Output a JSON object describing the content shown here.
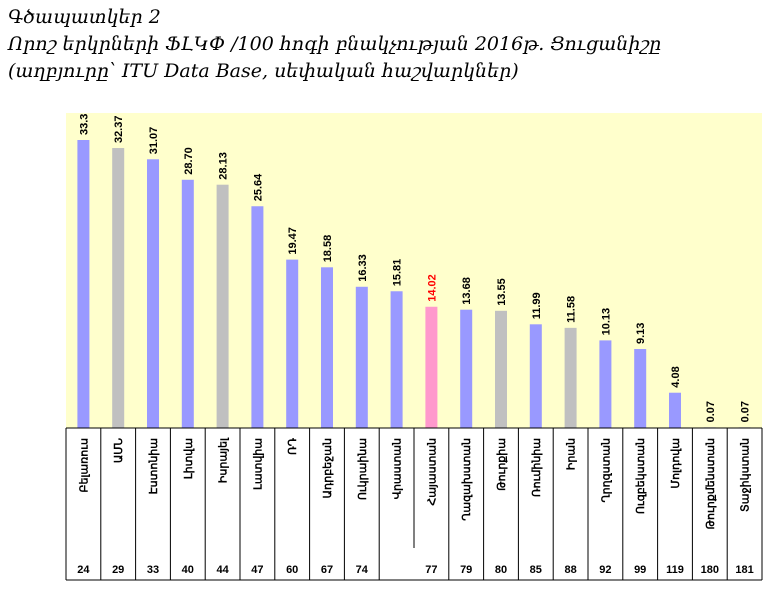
{
  "titles": {
    "label": "Գծապատկեր 2",
    "line1": "Որոշ երկրների ՖԼԿՓ /100 հոգի բնակչության 2016թ. Ցուցանիշը",
    "line2": "(աղբյուրը՝ ITU Data Base, սեփական հաշվարկներ)"
  },
  "chart_data": {
    "type": "bar",
    "title": "",
    "xlabel": "",
    "ylabel": "",
    "ylim": [
      0,
      33.3
    ],
    "grid": false,
    "legend": "none",
    "categories": [
      "Բելառուս",
      "ԱՄՆ",
      "Էստոնիա",
      "Լիտվա",
      "Իսրայել",
      "Լատվիա",
      "ՌԴ",
      "Ադրբեջան",
      "Ուկրաինա",
      "Վրաստան",
      "Հայաստան",
      "Ղազախստան",
      "Թուրքիա",
      "Ռումինիա",
      "Իրան",
      "Ղրղզստան",
      "Ուզբեկստան",
      "Մոլդովա",
      "Թուրքմենստան",
      "Տաջիկստան"
    ],
    "values": [
      33.3,
      32.37,
      31.07,
      28.7,
      28.13,
      25.64,
      19.47,
      18.58,
      16.33,
      15.81,
      14.02,
      13.68,
      13.55,
      11.99,
      11.58,
      10.13,
      9.13,
      4.08,
      0.07,
      0.07
    ],
    "value_labels": [
      "33.3",
      "32.37",
      "31.07",
      "28.70",
      "28.13",
      "25.64",
      "19.47",
      "18.58",
      "16.33",
      "15.81",
      "14.02",
      "13.68",
      "13.55",
      "11.99",
      "11.58",
      "10.13",
      "9.13",
      "4.08",
      "0.07",
      "0.07"
    ],
    "ranks": [
      "24",
      "29",
      "33",
      "40",
      "44",
      "47",
      "60",
      "67",
      "74",
      "",
      "77",
      "79",
      "80",
      "85",
      "88",
      "92",
      "99",
      "119",
      "180",
      "181"
    ],
    "bar_colors": [
      "#9999ff",
      "#c0c0c0",
      "#9999ff",
      "#9999ff",
      "#c0c0c0",
      "#9999ff",
      "#9999ff",
      "#9999ff",
      "#9999ff",
      "#9999ff",
      "#ff99cc",
      "#9999ff",
      "#c0c0c0",
      "#9999ff",
      "#c0c0c0",
      "#9999ff",
      "#9999ff",
      "#9999ff",
      "#9999ff",
      "#9999ff"
    ],
    "label_colors": [
      "#000000",
      "#000000",
      "#000000",
      "#000000",
      "#000000",
      "#000000",
      "#000000",
      "#000000",
      "#000000",
      "#000000",
      "#ff0000",
      "#000000",
      "#000000",
      "#000000",
      "#000000",
      "#000000",
      "#000000",
      "#000000",
      "#000000",
      "#000000"
    ],
    "plot_background": "#ffffcc"
  }
}
